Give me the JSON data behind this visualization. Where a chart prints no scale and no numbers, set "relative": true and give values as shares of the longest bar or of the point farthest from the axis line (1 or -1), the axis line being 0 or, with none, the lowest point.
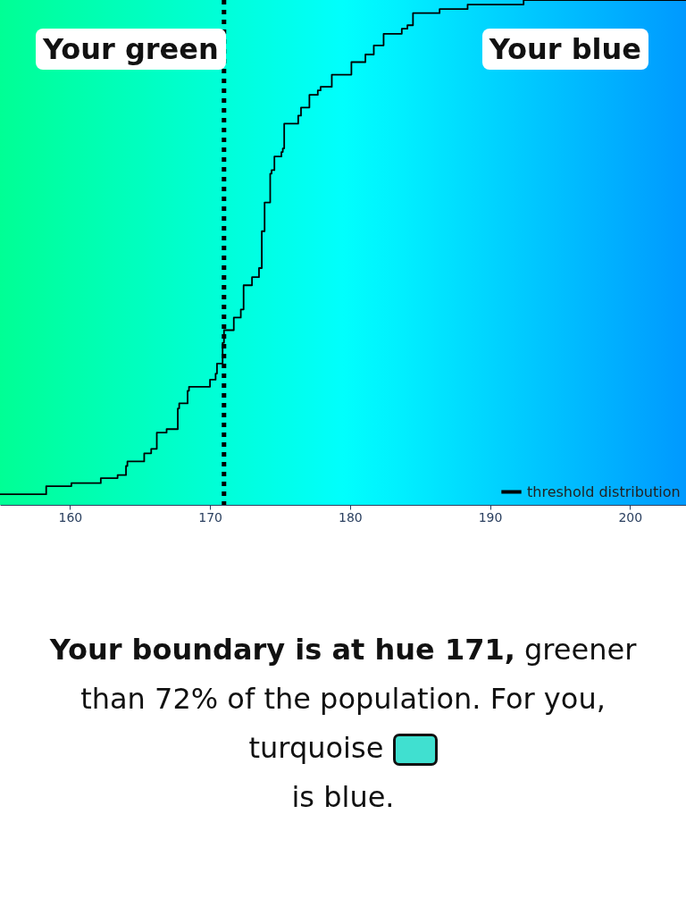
{
  "chart_data": {
    "type": "step",
    "relative": true,
    "x": [
      155,
      158.3,
      160.1,
      162.2,
      163.4,
      164.0,
      164.1,
      165.3,
      165.8,
      166.2,
      166.9,
      167.7,
      167.8,
      168.4,
      168.5,
      170.0,
      170.4,
      170.5,
      170.9,
      171.0,
      171.7,
      172.2,
      172.4,
      173.0,
      173.5,
      173.7,
      173.9,
      174.3,
      174.4,
      174.6,
      175.1,
      175.2,
      175.3,
      176.3,
      176.5,
      177.1,
      177.7,
      177.9,
      178.7,
      180.1,
      181.1,
      181.7,
      182.4,
      183.7,
      184.1,
      184.5,
      186.4,
      188.4,
      192.4,
      204
    ],
    "series": [
      {
        "name": "threshold distribution",
        "color": "#000000",
        "values": [
          0.021,
          0.037,
          0.043,
          0.053,
          0.059,
          0.077,
          0.086,
          0.102,
          0.111,
          0.143,
          0.15,
          0.191,
          0.201,
          0.226,
          0.234,
          0.248,
          0.26,
          0.28,
          0.321,
          0.346,
          0.371,
          0.387,
          0.435,
          0.451,
          0.469,
          0.542,
          0.599,
          0.656,
          0.663,
          0.69,
          0.699,
          0.706,
          0.755,
          0.771,
          0.787,
          0.812,
          0.821,
          0.828,
          0.852,
          0.877,
          0.892,
          0.91,
          0.933,
          0.943,
          0.95,
          0.974,
          0.982,
          0.991,
          1,
          1
        ]
      }
    ],
    "xlim": [
      155,
      204
    ],
    "xticks": [
      160,
      170,
      180,
      190,
      200
    ],
    "ref_lines": [
      {
        "axis": "x",
        "value": 171,
        "color": "#000000",
        "line_style": "dotted"
      }
    ],
    "legend": "bottom right",
    "annotations": [
      "Your green",
      "Your blue",
      "Your boundary is at hue 171,",
      "greener than 72% of the population. For you, turquoise",
      "is blue."
    ]
  }
}
